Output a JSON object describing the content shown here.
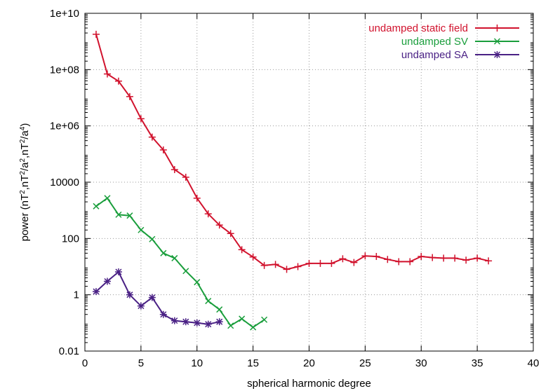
{
  "chart_data": {
    "type": "line",
    "xlabel": "spherical harmonic degree",
    "ylabel_parts": {
      "prefix": "power (nT",
      "sup1": "2",
      "mid1": ",nT",
      "sup2": "2",
      "mid2": "/a",
      "sup3": "2",
      "mid3": ",nT",
      "sup4": "2",
      "mid4": "/a",
      "sup5": "4",
      "suffix": ")"
    },
    "xlim": [
      0,
      40
    ],
    "ylim": [
      0.01,
      10000000000
    ],
    "yscale": "log",
    "grid": true,
    "legend_position": "top-right",
    "x_ticks": [
      0,
      5,
      10,
      15,
      20,
      25,
      30,
      35,
      40
    ],
    "x_tick_labels": [
      "0",
      "5",
      "10",
      "15",
      "20",
      "25",
      "30",
      "35",
      "40"
    ],
    "y_ticks": [
      0.01,
      1,
      100,
      10000,
      1000000,
      100000000,
      10000000000
    ],
    "y_tick_labels": [
      "0.01",
      "1",
      "100",
      "10000",
      "1e+06",
      "1e+08",
      "1e+10"
    ],
    "series": [
      {
        "name": "undamped static field",
        "color": "#d1122d",
        "marker": "plus",
        "x": [
          1,
          2,
          3,
          4,
          5,
          6,
          7,
          8,
          9,
          10,
          11,
          12,
          13,
          14,
          15,
          16,
          17,
          18,
          19,
          20,
          21,
          22,
          23,
          24,
          25,
          26,
          27,
          28,
          29,
          30,
          31,
          32,
          33,
          34,
          35,
          36
        ],
        "y": [
          1800000000.0,
          70000000.0,
          39000000.0,
          11000000.0,
          1800000.0,
          400000.0,
          140000.0,
          28000.0,
          15000.0,
          2700.0,
          750.0,
          300.0,
          150.0,
          40,
          22,
          11,
          12,
          8,
          10,
          13,
          13,
          13,
          19,
          14,
          24,
          23,
          18,
          15,
          15,
          23,
          21,
          20,
          20,
          17,
          20,
          16
        ]
      },
      {
        "name": "undamped SV",
        "color": "#1a9e3c",
        "marker": "cross",
        "x": [
          1,
          2,
          3,
          4,
          5,
          6,
          7,
          8,
          9,
          10,
          11,
          12,
          13,
          14,
          15,
          16
        ],
        "y": [
          1400,
          2700,
          700,
          650,
          200,
          95,
          30,
          20,
          7,
          2.8,
          0.6,
          0.3,
          0.08,
          0.14,
          0.07,
          0.13
        ]
      },
      {
        "name": "undamped SA",
        "color": "#4a2185",
        "marker": "star",
        "x": [
          1,
          2,
          3,
          4,
          5,
          6,
          7,
          8,
          9,
          10,
          11,
          12
        ],
        "y": [
          1.3,
          3.0,
          6.5,
          1.0,
          0.4,
          0.8,
          0.2,
          0.12,
          0.11,
          0.1,
          0.09,
          0.11
        ]
      }
    ]
  }
}
